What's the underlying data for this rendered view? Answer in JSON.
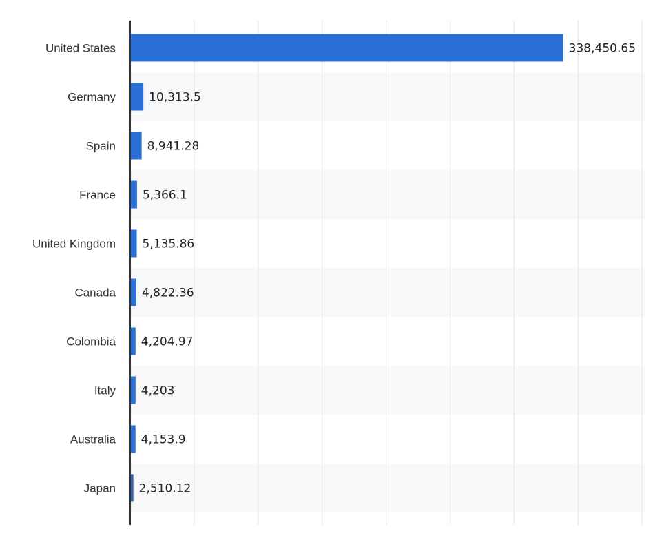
{
  "chart_data": {
    "type": "bar",
    "orientation": "horizontal",
    "categories": [
      "United States",
      "Germany",
      "Spain",
      "France",
      "United Kingdom",
      "Canada",
      "Colombia",
      "Italy",
      "Australia",
      "Japan"
    ],
    "values": [
      338450.65,
      10313.5,
      8941.28,
      5366.1,
      5135.86,
      4822.36,
      4204.97,
      4203,
      4153.9,
      2510.12
    ],
    "value_labels": [
      "338,450.65",
      "10,313.5",
      "8,941.28",
      "5,366.1",
      "5,135.86",
      "4,822.36",
      "4,204.97",
      "4,203",
      "4,153.9",
      "2,510.12"
    ],
    "title": "",
    "xlabel": "",
    "ylabel": "",
    "xlim": [
      0,
      400000
    ],
    "grid": true,
    "legend": "none"
  },
  "colors": {
    "bar": "#2b6fd6",
    "bar_last": "#3a63a8",
    "grid": "#e4e4e4",
    "band": "#f7f8fa",
    "axis": "#333333"
  }
}
